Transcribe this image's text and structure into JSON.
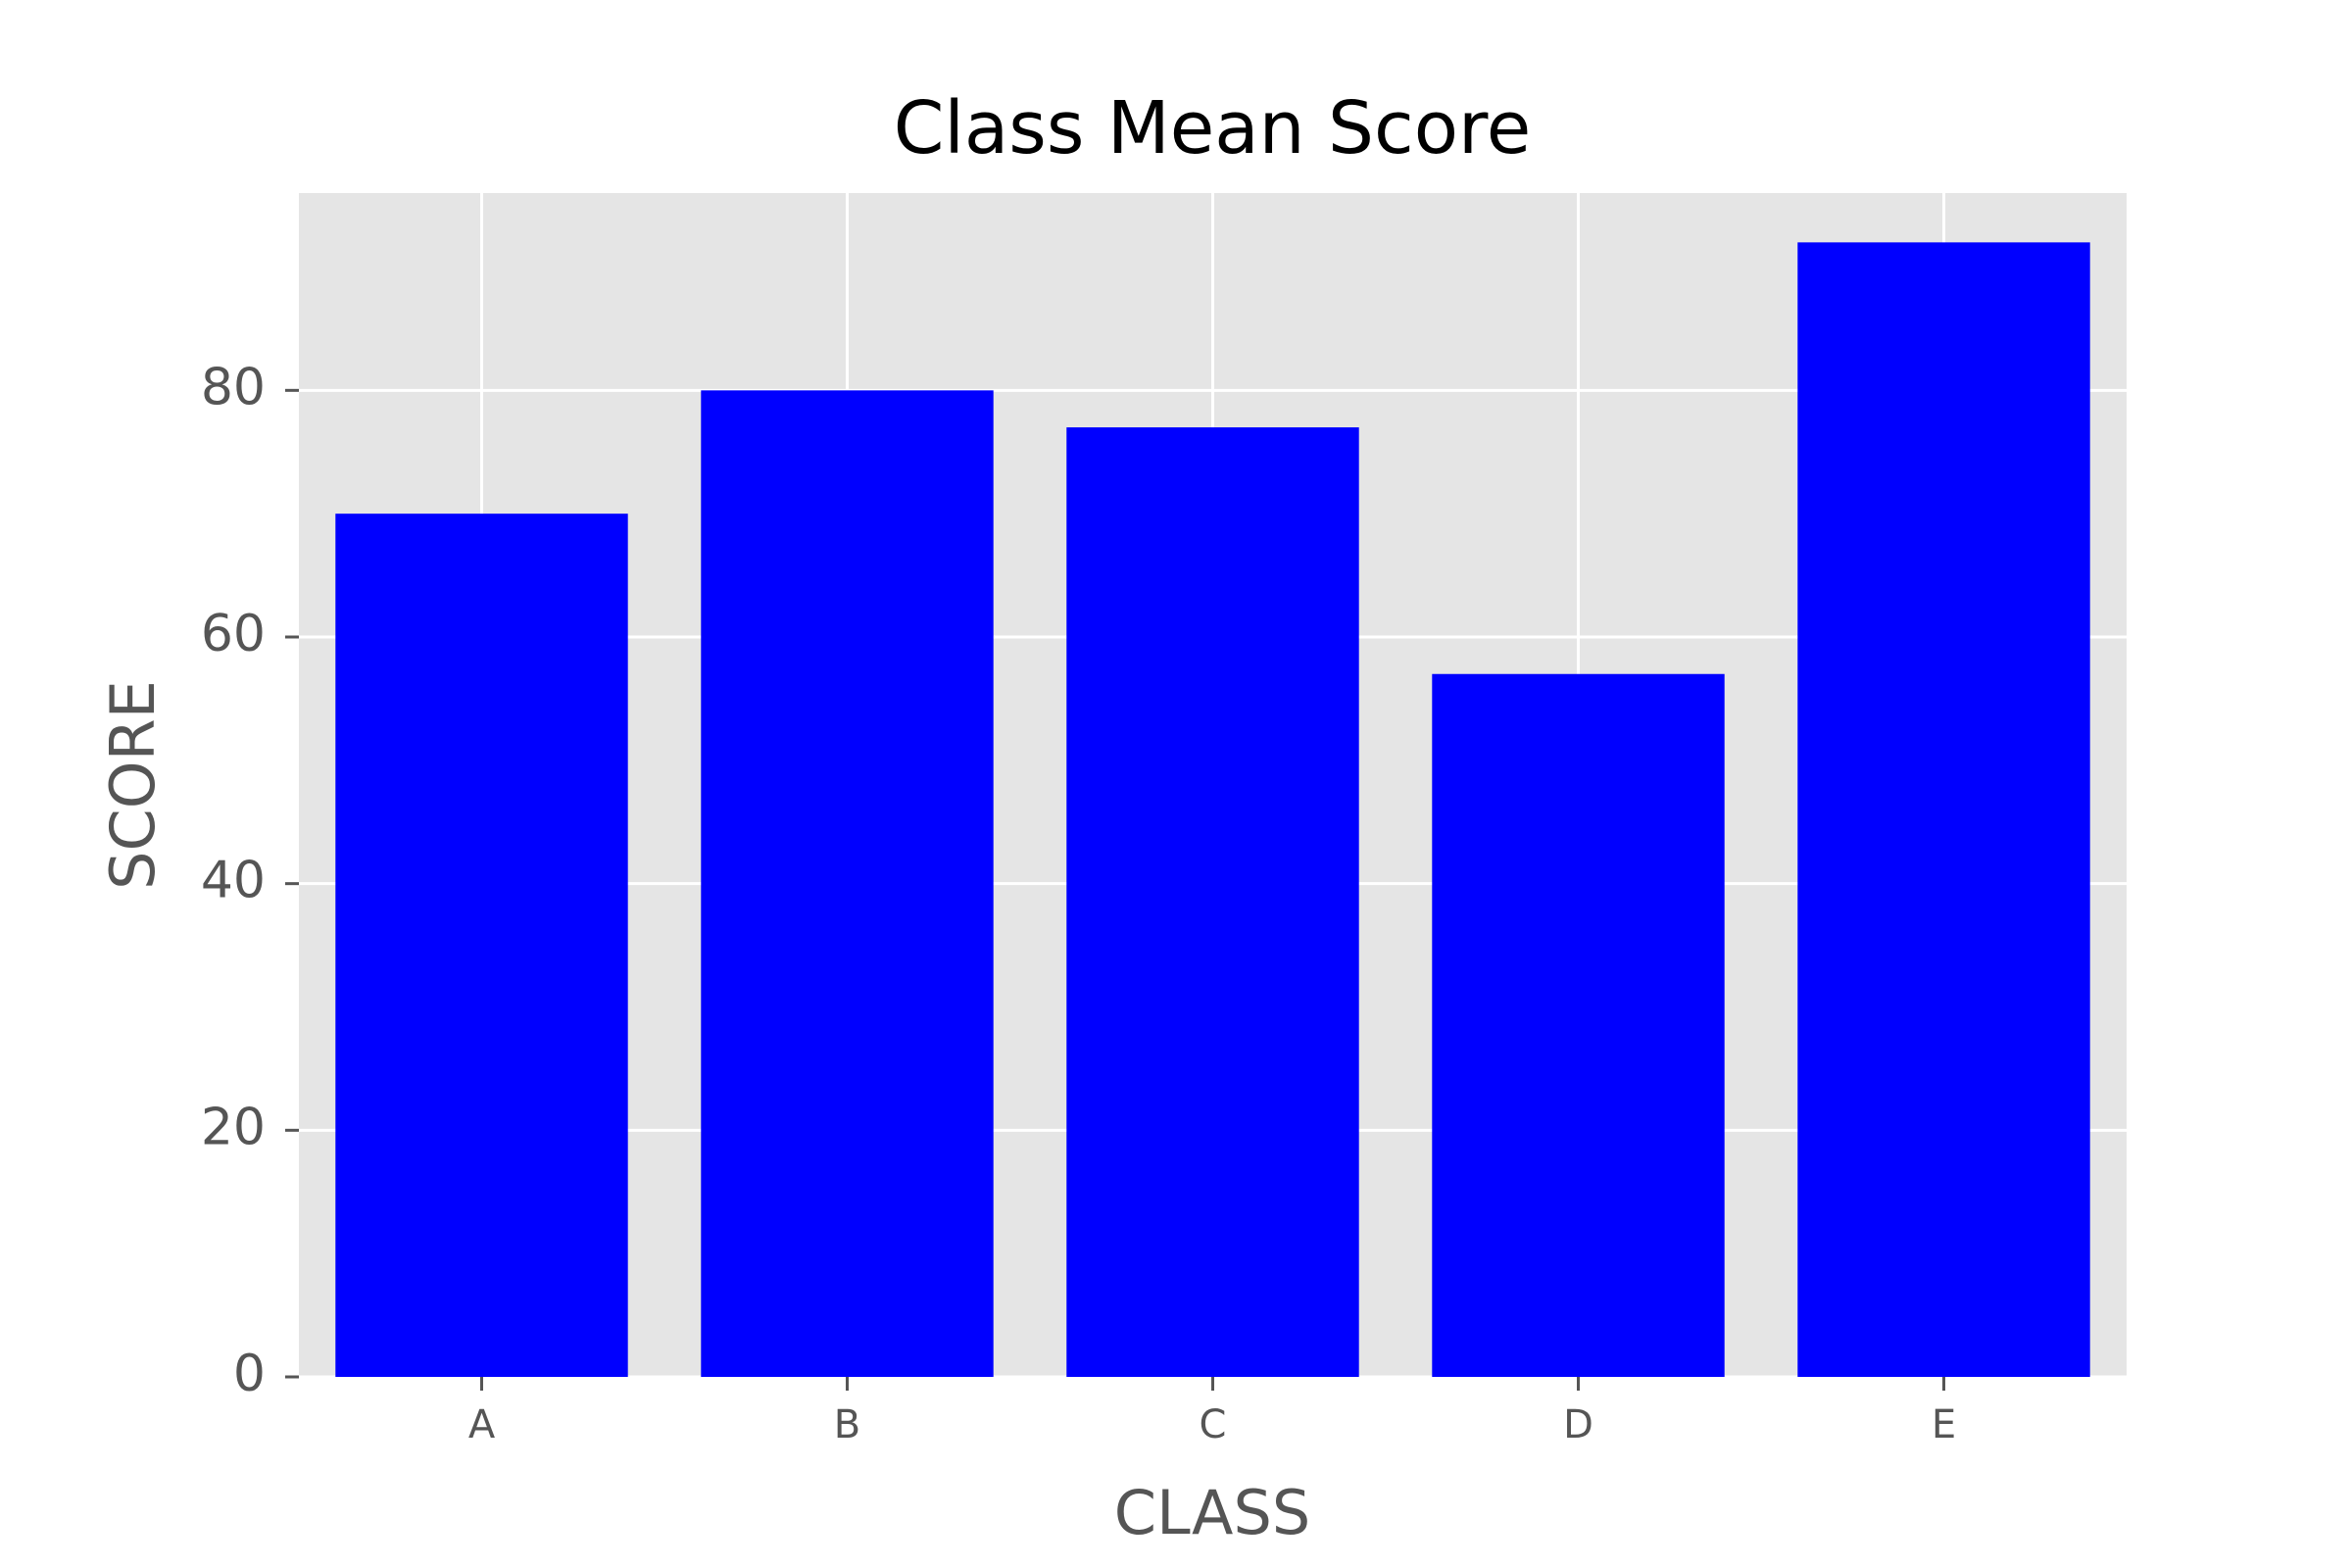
{
  "chart_data": {
    "type": "bar",
    "title": "Class Mean Score",
    "xlabel": "CLASS",
    "ylabel": "SCORE",
    "categories": [
      "A",
      "B",
      "C",
      "D",
      "E"
    ],
    "values": [
      70,
      80,
      77,
      57,
      92
    ],
    "ylim": [
      0,
      96
    ],
    "yticks": [
      0,
      20,
      40,
      60,
      80
    ],
    "grid": true,
    "legend": "none",
    "colors": {
      "bar": "#0000ff",
      "plot_background": "#e5e5e5",
      "grid": "#ffffff",
      "tick_label": "#555555",
      "title": "#000000"
    }
  }
}
